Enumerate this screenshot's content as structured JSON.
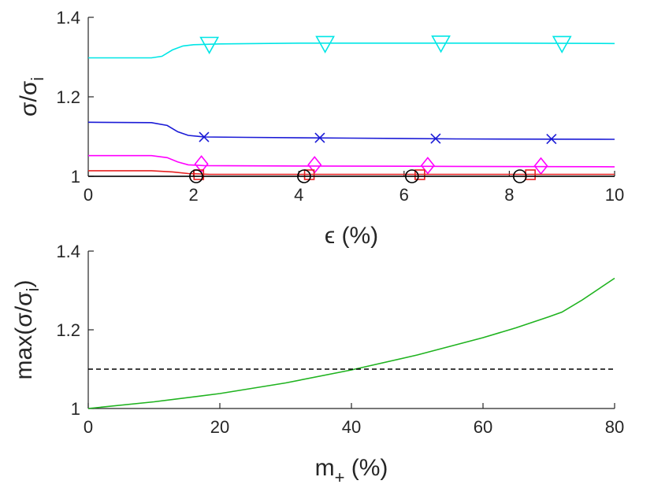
{
  "chart_data": [
    {
      "type": "line",
      "xlabel": "ϵ (%)",
      "ylabel": "σ/σi",
      "xlim": [
        0,
        10
      ],
      "ylim": [
        1,
        1.4
      ],
      "xticks": [
        0,
        2,
        4,
        6,
        8,
        10
      ],
      "yticks": [
        1,
        1.2,
        1.4
      ],
      "xtick_labels": [
        "0",
        "2",
        "4",
        "6",
        "8",
        "10"
      ],
      "ytick_labels": [
        "1",
        "1.2",
        "1.4"
      ],
      "series": [
        {
          "name": "triangle-series",
          "color": "#00e6e6",
          "marker": "triangle-down",
          "x": [
            0,
            1.2,
            1.4,
            1.6,
            1.8,
            2.0,
            2.5,
            4,
            6,
            8,
            10
          ],
          "y": [
            1.298,
            1.298,
            1.302,
            1.318,
            1.328,
            1.331,
            1.333,
            1.335,
            1.335,
            1.335,
            1.334
          ],
          "marker_x": [
            2.3,
            4.5,
            6.7,
            9.0
          ],
          "marker_y": [
            1.331,
            1.333,
            1.334,
            1.333
          ]
        },
        {
          "name": "x-series",
          "color": "#1a1ad6",
          "marker": "x",
          "x": [
            0,
            1.2,
            1.5,
            1.7,
            1.9,
            2.2,
            3,
            5,
            7,
            10
          ],
          "y": [
            1.136,
            1.135,
            1.128,
            1.112,
            1.103,
            1.099,
            1.098,
            1.096,
            1.094,
            1.093
          ],
          "marker_x": [
            2.2,
            4.4,
            6.6,
            8.8
          ],
          "marker_y": [
            1.099,
            1.097,
            1.095,
            1.094
          ]
        },
        {
          "name": "diamond-series",
          "color": "#ff00ff",
          "marker": "diamond",
          "x": [
            0,
            1.2,
            1.5,
            1.7,
            1.9,
            2.2,
            4,
            7,
            10
          ],
          "y": [
            1.052,
            1.052,
            1.047,
            1.036,
            1.029,
            1.027,
            1.026,
            1.025,
            1.024
          ],
          "marker_x": [
            2.15,
            4.3,
            6.45,
            8.6
          ],
          "marker_y": [
            1.031,
            1.029,
            1.027,
            1.026
          ]
        },
        {
          "name": "square-series",
          "color": "#e62020",
          "marker": "square",
          "x": [
            0,
            1.2,
            1.6,
            1.9,
            2.3,
            4,
            7,
            10
          ],
          "y": [
            1.014,
            1.014,
            1.011,
            1.007,
            1.005,
            1.005,
            1.005,
            1.005
          ],
          "marker_x": [
            2.1,
            4.2,
            6.3,
            8.4
          ],
          "marker_y": [
            1.004,
            1.004,
            1.004,
            1.004
          ]
        },
        {
          "name": "circle-series",
          "color": "#000000",
          "marker": "circle",
          "x": [
            0,
            10
          ],
          "y": [
            1.0,
            1.0
          ],
          "marker_x": [
            2.05,
            4.1,
            6.15,
            8.2
          ],
          "marker_y": [
            1.0,
            1.0,
            1.0,
            1.0
          ]
        }
      ]
    },
    {
      "type": "line",
      "xlabel": "m+ (%)",
      "ylabel": "max(σ/σi)",
      "xlim": [
        0,
        80
      ],
      "ylim": [
        1,
        1.4
      ],
      "xticks": [
        0,
        20,
        40,
        60,
        80
      ],
      "yticks": [
        1,
        1.2,
        1.4
      ],
      "xtick_labels": [
        "0",
        "20",
        "40",
        "60",
        "80"
      ],
      "ytick_labels": [
        "1",
        "1.2",
        "1.4"
      ],
      "series": [
        {
          "name": "max-ratio",
          "color": "#1fb31f",
          "x": [
            0,
            10,
            20,
            30,
            40,
            50,
            60,
            65,
            70,
            72,
            75,
            80
          ],
          "y": [
            1.0,
            1.017,
            1.038,
            1.065,
            1.098,
            1.136,
            1.18,
            1.205,
            1.233,
            1.245,
            1.275,
            1.331
          ]
        },
        {
          "name": "threshold",
          "color": "#000000",
          "style": "dashed",
          "x": [
            0,
            80
          ],
          "y": [
            1.1,
            1.1
          ]
        }
      ]
    }
  ]
}
